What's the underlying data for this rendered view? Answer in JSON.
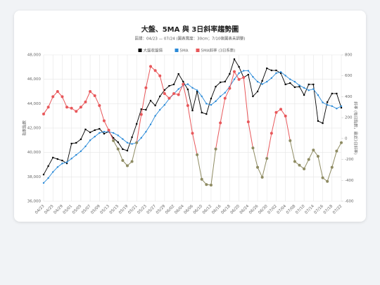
{
  "chart_data": {
    "type": "line",
    "title": "大盤、5MA 與 3日斜率趨勢圖",
    "subtitle": "區間：04/23 — 07/24 (圖表寬度：30cm；7/10後圖表未調整)",
    "ylabel": "指數點數",
    "y2label": "斜率 (每日點數，最近3日斜率)",
    "categories": [
      "04/23",
      null,
      "04/25",
      null,
      "04/29",
      null,
      "05/01",
      null,
      "05/05",
      null,
      "05/07",
      null,
      "05/09",
      null,
      "05/13",
      null,
      "05/15",
      null,
      "05/19",
      null,
      "05/21",
      null,
      "05/23",
      null,
      "05/27",
      null,
      "05/29",
      null,
      "06/02",
      null,
      "06/04",
      null,
      "06/06",
      null,
      "06/10",
      null,
      "06/12",
      null,
      "06/16",
      null,
      "06/18",
      null,
      "06/20",
      null,
      "06/24",
      null,
      "06/26",
      null,
      "06/30",
      null,
      "07/02",
      null,
      "07/04",
      null,
      "07/08",
      null,
      "07/10",
      null,
      "07/14",
      null,
      "07/16",
      null,
      "07/18",
      null,
      "07/22"
    ],
    "series": [
      {
        "name": "大盤收盤價",
        "color": "#000000",
        "marker": "square",
        "values": [
          38190,
          38880,
          39580,
          39460,
          39340,
          39110,
          40730,
          40790,
          41080,
          41890,
          41650,
          41830,
          41940,
          41540,
          41710,
          41190,
          40840,
          40270,
          40150,
          41250,
          42340,
          43550,
          43500,
          44250,
          43850,
          44600,
          45120,
          45460,
          45580,
          46440,
          45810,
          45170,
          43440,
          45000,
          43270,
          43150,
          44420,
          45400,
          45750,
          45810,
          46440,
          47650,
          47020,
          46150,
          46380,
          44600,
          45000,
          45870,
          46900,
          46730,
          46730,
          46500,
          45580,
          45690,
          45350,
          45400,
          44710,
          45580,
          45580,
          42580,
          42400,
          44130,
          44830,
          44830,
          43670
        ]
      },
      {
        "name": "5MA",
        "color": "#2a8ad8",
        "marker": "circle",
        "values": [
          37500,
          37900,
          38400,
          38800,
          39100,
          39200,
          39500,
          39800,
          40100,
          40500,
          41000,
          41300,
          41600,
          41700,
          41700,
          41600,
          41400,
          41100,
          40800,
          40700,
          40800,
          41200,
          41700,
          42300,
          43000,
          43500,
          43900,
          44400,
          44800,
          45200,
          45500,
          45600,
          45300,
          45100,
          44600,
          44000,
          43900,
          44200,
          44600,
          44900,
          45400,
          46000,
          46500,
          46700,
          46700,
          46200,
          45800,
          45600,
          45800,
          46100,
          46500,
          46600,
          46300,
          46000,
          45800,
          45500,
          45300,
          45100,
          45200,
          44700,
          44100,
          43900,
          43800,
          43600,
          43800
        ]
      },
      {
        "name": "5MA斜率 (3日系數)",
        "color": "#e8575a",
        "negative_color": "#8e8b62",
        "axis": "y2",
        "marker": "circle",
        "values": [
          235,
          300,
          400,
          450,
          400,
          300,
          290,
          260,
          300,
          350,
          450,
          410,
          315,
          170,
          80,
          -20,
          -100,
          -210,
          -260,
          -220,
          -40,
          230,
          485,
          690,
          650,
          600,
          430,
          385,
          430,
          420,
          520,
          315,
          50,
          -155,
          -390,
          -440,
          -445,
          -100,
          150,
          385,
          480,
          640,
          565,
          585,
          160,
          -90,
          -275,
          -370,
          -190,
          50,
          250,
          280,
          215,
          -20,
          -220,
          -255,
          -290,
          -200,
          -110,
          -170,
          -375,
          -410,
          -275,
          -120,
          -40
        ]
      }
    ],
    "ylim": [
      36000,
      48000
    ],
    "yticks": [
      {
        "value": 36000,
        "label": "36,000"
      },
      {
        "value": 38000,
        "label": "38,000"
      },
      {
        "value": 40000,
        "label": "40,000"
      },
      {
        "value": 42000,
        "label": "42,000"
      },
      {
        "value": 44000,
        "label": "44,000"
      },
      {
        "value": 46000,
        "label": "46,000"
      },
      {
        "value": 48000,
        "label": "48,000"
      }
    ],
    "y2lim": [
      -600,
      800
    ],
    "y2ticks": [
      -600,
      -400,
      -200,
      0,
      200,
      400,
      600,
      800
    ],
    "grid": true
  }
}
